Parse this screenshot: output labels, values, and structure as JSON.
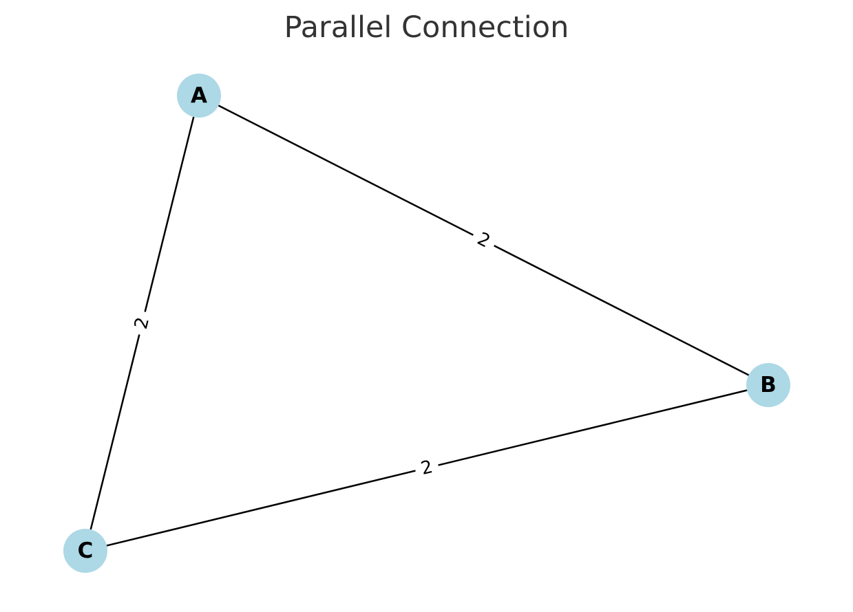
{
  "title": "Parallel Connection",
  "colors": {
    "node_fill": "#ADD8E6",
    "edge": "#000000",
    "title_text": "#333333",
    "background": "#FFFFFF"
  },
  "nodes": [
    {
      "id": "A",
      "label": "A"
    },
    {
      "id": "B",
      "label": "B"
    },
    {
      "id": "C",
      "label": "C"
    }
  ],
  "edges": [
    {
      "source": "A",
      "target": "B",
      "label": "2"
    },
    {
      "source": "A",
      "target": "C",
      "label": "2"
    },
    {
      "source": "B",
      "target": "C",
      "label": "2"
    }
  ]
}
